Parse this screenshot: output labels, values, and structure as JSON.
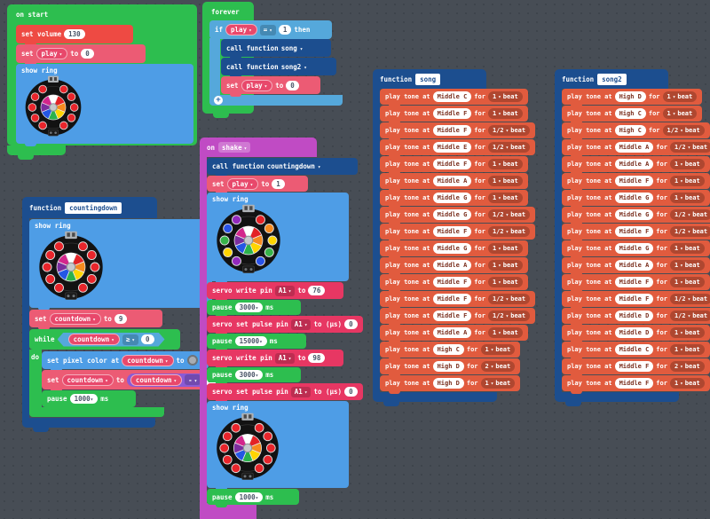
{
  "workspace": {
    "bg": "#474D55",
    "dot": "#3E444B"
  },
  "palette": {
    "loops": "#2DBE4F",
    "logic": "#55A8DB",
    "light": "#4E9DE6",
    "functions": "#1C4E8F",
    "variables": "#EC5B74",
    "variable_pill": "#E8486B",
    "music_cmd": "#EE4A43",
    "music_tone": "#E15B3E",
    "pins": "#E73763",
    "input": "#C04BC4",
    "math": "#8A5BD6",
    "led_red": "#E8252B"
  },
  "rings": {
    "wheel": [
      "#FFFFFF",
      "#E32226",
      "#F68B1F",
      "#FFD500",
      "#2BB24C",
      "#2457E5",
      "#7B2E9E",
      "#D3268C"
    ],
    "red": [
      "#E8252B",
      "#E8252B",
      "#E8252B",
      "#E8252B",
      "#E8252B",
      "#E8252B",
      "#E8252B",
      "#E8252B",
      "#E8252B",
      "#E8252B"
    ],
    "rainbow": [
      "#E32226",
      "#F68B1F",
      "#FFD500",
      "#37B34A",
      "#2953E8",
      "#9229BD",
      "#FFD500",
      "#37B34A",
      "#2953E8",
      "#9229BD"
    ]
  },
  "on_start": {
    "label": "on start",
    "set_volume": {
      "label": "set volume",
      "value": "130"
    },
    "set_play": {
      "set": "set",
      "var": "play",
      "to": "to",
      "value": "0"
    },
    "show_ring": "show ring"
  },
  "forever": {
    "label": "forever",
    "if": {
      "if": "if",
      "var": "play",
      "op": "=",
      "value": "1",
      "then": "then"
    },
    "call_song": {
      "label": "call function",
      "fn": "song"
    },
    "call_song2": {
      "label": "call function",
      "fn": "song2"
    },
    "set_play": {
      "set": "set",
      "var": "play",
      "to": "to",
      "value": "0"
    }
  },
  "countingdown": {
    "fn_label": "function",
    "name": "countingdown",
    "show_ring": "show ring",
    "set_countdown": {
      "set": "set",
      "var": "countdown",
      "to": "to",
      "value": "9"
    },
    "while": {
      "label": "while",
      "var": "countdown",
      "op": "≥",
      "value": "0",
      "do": "do"
    },
    "set_pixel": {
      "label": "set pixel color at",
      "var": "countdown",
      "to": "to"
    },
    "set_expr": {
      "set": "set",
      "var": "countdown",
      "to": "to",
      "expr_var": "countdown",
      "op": "-",
      "value": "1"
    },
    "pause": {
      "label": "pause",
      "value": "1000",
      "ms": "ms"
    }
  },
  "on_shake": {
    "on": "on",
    "event": "shake",
    "call": {
      "label": "call function",
      "fn": "countingdown"
    },
    "set_play": {
      "set": "set",
      "var": "play",
      "to": "to",
      "value": "1"
    },
    "show_ring": "show ring",
    "servo1": {
      "label": "servo write pin",
      "pin": "A1",
      "to": "to",
      "value": "76"
    },
    "pause1": {
      "label": "pause",
      "value": "3000",
      "ms": "ms"
    },
    "pulse1": {
      "label": "servo set pulse pin",
      "pin": "A1",
      "to": "to (µs)",
      "value": "0"
    },
    "pause2": {
      "label": "pause",
      "value": "15000",
      "ms": "ms"
    },
    "servo2": {
      "label": "servo write pin",
      "pin": "A1",
      "to": "to",
      "value": "98"
    },
    "pause3": {
      "label": "pause",
      "value": "3000",
      "ms": "ms"
    },
    "pulse2": {
      "label": "servo set pulse pin",
      "pin": "A1",
      "to": "to (µs)",
      "value": "0"
    },
    "show_ring2": "show ring",
    "pause4": {
      "label": "pause",
      "value": "1000",
      "ms": "ms"
    }
  },
  "songs": {
    "labels": {
      "fn": "function",
      "play": "play tone at",
      "for": "for",
      "beat": "beat"
    },
    "song": {
      "name": "song",
      "notes": [
        [
          "Middle C",
          "1"
        ],
        [
          "Middle F",
          "1"
        ],
        [
          "Middle F",
          "1/2"
        ],
        [
          "Middle E",
          "1/2"
        ],
        [
          "Middle F",
          "1"
        ],
        [
          "Middle A",
          "1"
        ],
        [
          "Middle G",
          "1"
        ],
        [
          "Middle G",
          "1/2"
        ],
        [
          "Middle F",
          "1/2"
        ],
        [
          "Middle G",
          "1"
        ],
        [
          "Middle A",
          "1"
        ],
        [
          "Middle F",
          "1"
        ],
        [
          "Middle F",
          "1/2"
        ],
        [
          "Middle F",
          "1/2"
        ],
        [
          "Middle A",
          "1"
        ],
        [
          "High C",
          "1"
        ],
        [
          "High D",
          "2"
        ],
        [
          "High D",
          "1"
        ]
      ]
    },
    "song2": {
      "name": "song2",
      "notes": [
        [
          "High D",
          "1"
        ],
        [
          "High C",
          "1"
        ],
        [
          "High C",
          "1/2"
        ],
        [
          "Middle A",
          "1/2"
        ],
        [
          "Middle A",
          "1"
        ],
        [
          "Middle F",
          "1"
        ],
        [
          "Middle G",
          "1"
        ],
        [
          "Middle G",
          "1/2"
        ],
        [
          "Middle F",
          "1/2"
        ],
        [
          "Middle G",
          "1"
        ],
        [
          "Middle A",
          "1"
        ],
        [
          "Middle F",
          "1"
        ],
        [
          "Middle F",
          "1/2"
        ],
        [
          "Middle D",
          "1/2"
        ],
        [
          "Middle D",
          "1"
        ],
        [
          "Middle C",
          "1"
        ],
        [
          "Middle F",
          "2"
        ],
        [
          "Middle F",
          "1"
        ]
      ]
    }
  }
}
